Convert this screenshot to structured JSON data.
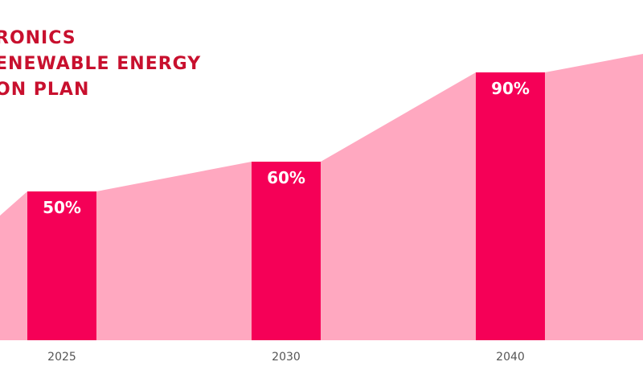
{
  "chart_data": {
    "type": "bar",
    "title_lines": [
      "RONICS",
      "ENEWABLE ENERGY",
      "ON PLAN"
    ],
    "categories": [
      "2025",
      "2030",
      "2040"
    ],
    "values": [
      50,
      60,
      90
    ],
    "value_labels": [
      "50%",
      "60%",
      "90%"
    ],
    "ylim": [
      0,
      100
    ],
    "colors": {
      "title": "#c8102e",
      "bar": "#f50057",
      "area": "#ffa8c0",
      "bar_label": "#ffffff",
      "tick_label": "#555555"
    }
  }
}
